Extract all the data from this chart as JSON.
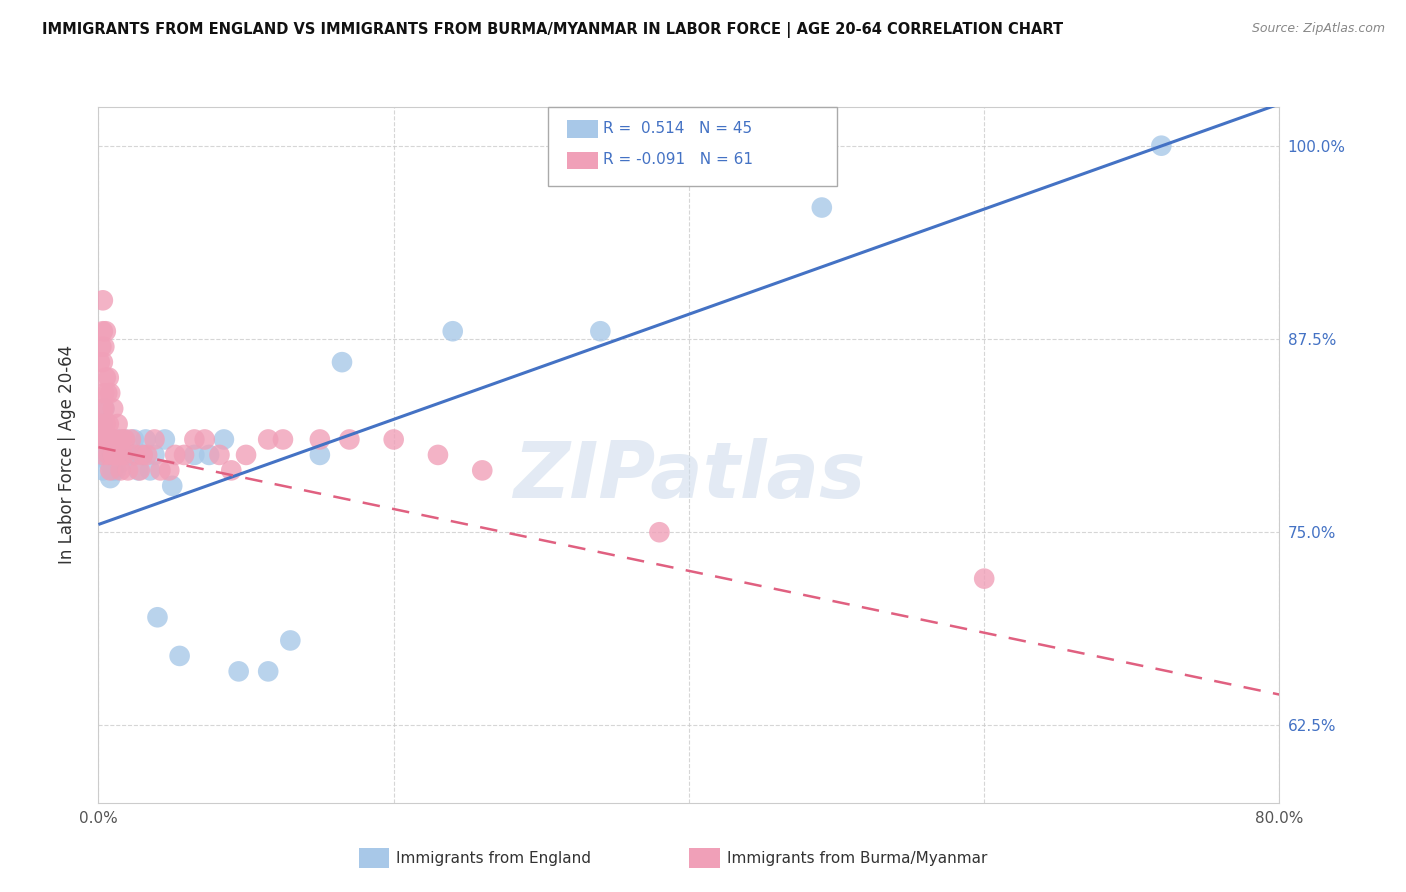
{
  "title": "IMMIGRANTS FROM ENGLAND VS IMMIGRANTS FROM BURMA/MYANMAR IN LABOR FORCE | AGE 20-64 CORRELATION CHART",
  "source": "Source: ZipAtlas.com",
  "ylabel": "In Labor Force | Age 20-64",
  "xlim": [
    0.0,
    0.8
  ],
  "ylim": [
    0.575,
    1.025
  ],
  "england_R": 0.514,
  "england_N": 45,
  "burma_R": -0.091,
  "burma_N": 61,
  "england_color": "#a8c8e8",
  "burma_color": "#f0a0b8",
  "england_line_color": "#4472c4",
  "burma_line_color": "#e06080",
  "watermark": "ZIPatlas",
  "england_x": [
    0.001,
    0.002,
    0.003,
    0.003,
    0.004,
    0.004,
    0.005,
    0.006,
    0.007,
    0.008,
    0.009,
    0.01,
    0.01,
    0.011,
    0.012,
    0.013,
    0.014,
    0.015,
    0.016,
    0.017,
    0.018,
    0.02,
    0.022,
    0.024,
    0.027,
    0.03,
    0.032,
    0.035,
    0.038,
    0.04,
    0.045,
    0.05,
    0.055,
    0.065,
    0.075,
    0.085,
    0.095,
    0.115,
    0.13,
    0.15,
    0.165,
    0.24,
    0.34,
    0.49,
    0.72
  ],
  "england_y": [
    0.8,
    0.81,
    0.82,
    0.79,
    0.81,
    0.83,
    0.8,
    0.81,
    0.795,
    0.785,
    0.8,
    0.81,
    0.79,
    0.8,
    0.79,
    0.8,
    0.81,
    0.795,
    0.805,
    0.8,
    0.81,
    0.8,
    0.8,
    0.81,
    0.79,
    0.8,
    0.81,
    0.79,
    0.8,
    0.695,
    0.81,
    0.78,
    0.67,
    0.8,
    0.8,
    0.81,
    0.66,
    0.66,
    0.68,
    0.8,
    0.86,
    0.88,
    0.88,
    0.96,
    1.0
  ],
  "burma_x": [
    0.001,
    0.001,
    0.002,
    0.002,
    0.003,
    0.003,
    0.003,
    0.003,
    0.003,
    0.004,
    0.004,
    0.004,
    0.004,
    0.005,
    0.005,
    0.005,
    0.006,
    0.006,
    0.006,
    0.007,
    0.007,
    0.007,
    0.008,
    0.008,
    0.008,
    0.009,
    0.01,
    0.01,
    0.011,
    0.012,
    0.013,
    0.014,
    0.015,
    0.016,
    0.017,
    0.018,
    0.02,
    0.022,
    0.025,
    0.028,
    0.03,
    0.033,
    0.038,
    0.042,
    0.048,
    0.052,
    0.058,
    0.065,
    0.072,
    0.082,
    0.09,
    0.1,
    0.115,
    0.125,
    0.15,
    0.17,
    0.2,
    0.23,
    0.26,
    0.38,
    0.6
  ],
  "burma_y": [
    0.82,
    0.86,
    0.81,
    0.87,
    0.8,
    0.83,
    0.86,
    0.88,
    0.9,
    0.81,
    0.84,
    0.87,
    0.83,
    0.82,
    0.85,
    0.88,
    0.81,
    0.84,
    0.81,
    0.82,
    0.85,
    0.8,
    0.81,
    0.84,
    0.79,
    0.81,
    0.8,
    0.83,
    0.81,
    0.8,
    0.82,
    0.8,
    0.79,
    0.81,
    0.8,
    0.81,
    0.79,
    0.81,
    0.8,
    0.79,
    0.8,
    0.8,
    0.81,
    0.79,
    0.79,
    0.8,
    0.8,
    0.81,
    0.81,
    0.8,
    0.79,
    0.8,
    0.81,
    0.81,
    0.81,
    0.81,
    0.81,
    0.8,
    0.79,
    0.75,
    0.72
  ]
}
